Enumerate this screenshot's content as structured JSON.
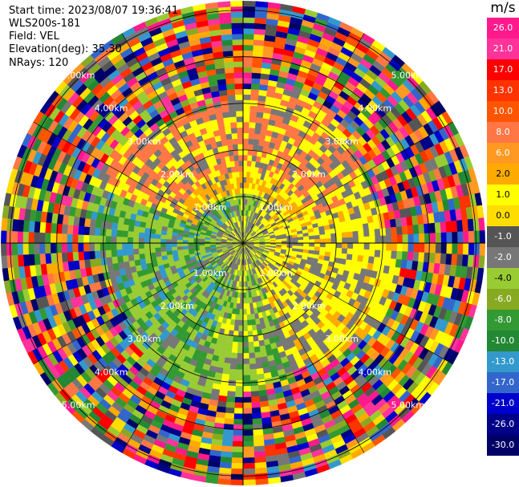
{
  "header": {
    "start_time": "Start time: 2023/08/07 19:36:41",
    "site": "WLS200s-181",
    "field": "Field: VEL",
    "elevation": "Elevation(deg): 35.30",
    "nrays": "NRays: 120"
  },
  "ppi": {
    "num_rays": 120,
    "range_labels": [
      "1.00km",
      "2.00km",
      "3.00km",
      "4.00km",
      "5.00km"
    ],
    "range_rings_km": [
      1,
      2,
      3,
      4,
      5
    ],
    "max_range_km": 5.2
  },
  "colorbar": {
    "unit": "m/s",
    "labels": [
      "26.0",
      "21.0",
      "17.0",
      "13.0",
      "10.0",
      "8.0",
      "6.0",
      "2.0",
      "1.0",
      "0.0",
      "-1.0",
      "-2.0",
      "-4.0",
      "-6.0",
      "-8.0",
      "-10.0",
      "-13.0",
      "-17.0",
      "-21.0",
      "-26.0",
      "-30.0"
    ],
    "colors": [
      "#ff1a8c",
      "#ff3399",
      "#ff0000",
      "#ff3300",
      "#ff5500",
      "#ff7744",
      "#ff9922",
      "#ffaa00",
      "#ffff00",
      "#ffdd00",
      "#555555",
      "#777777",
      "#99cc33",
      "#88aa22",
      "#339933",
      "#228833",
      "#3399cc",
      "#3366cc",
      "#0000cc",
      "#000088",
      "#000066"
    ]
  }
}
